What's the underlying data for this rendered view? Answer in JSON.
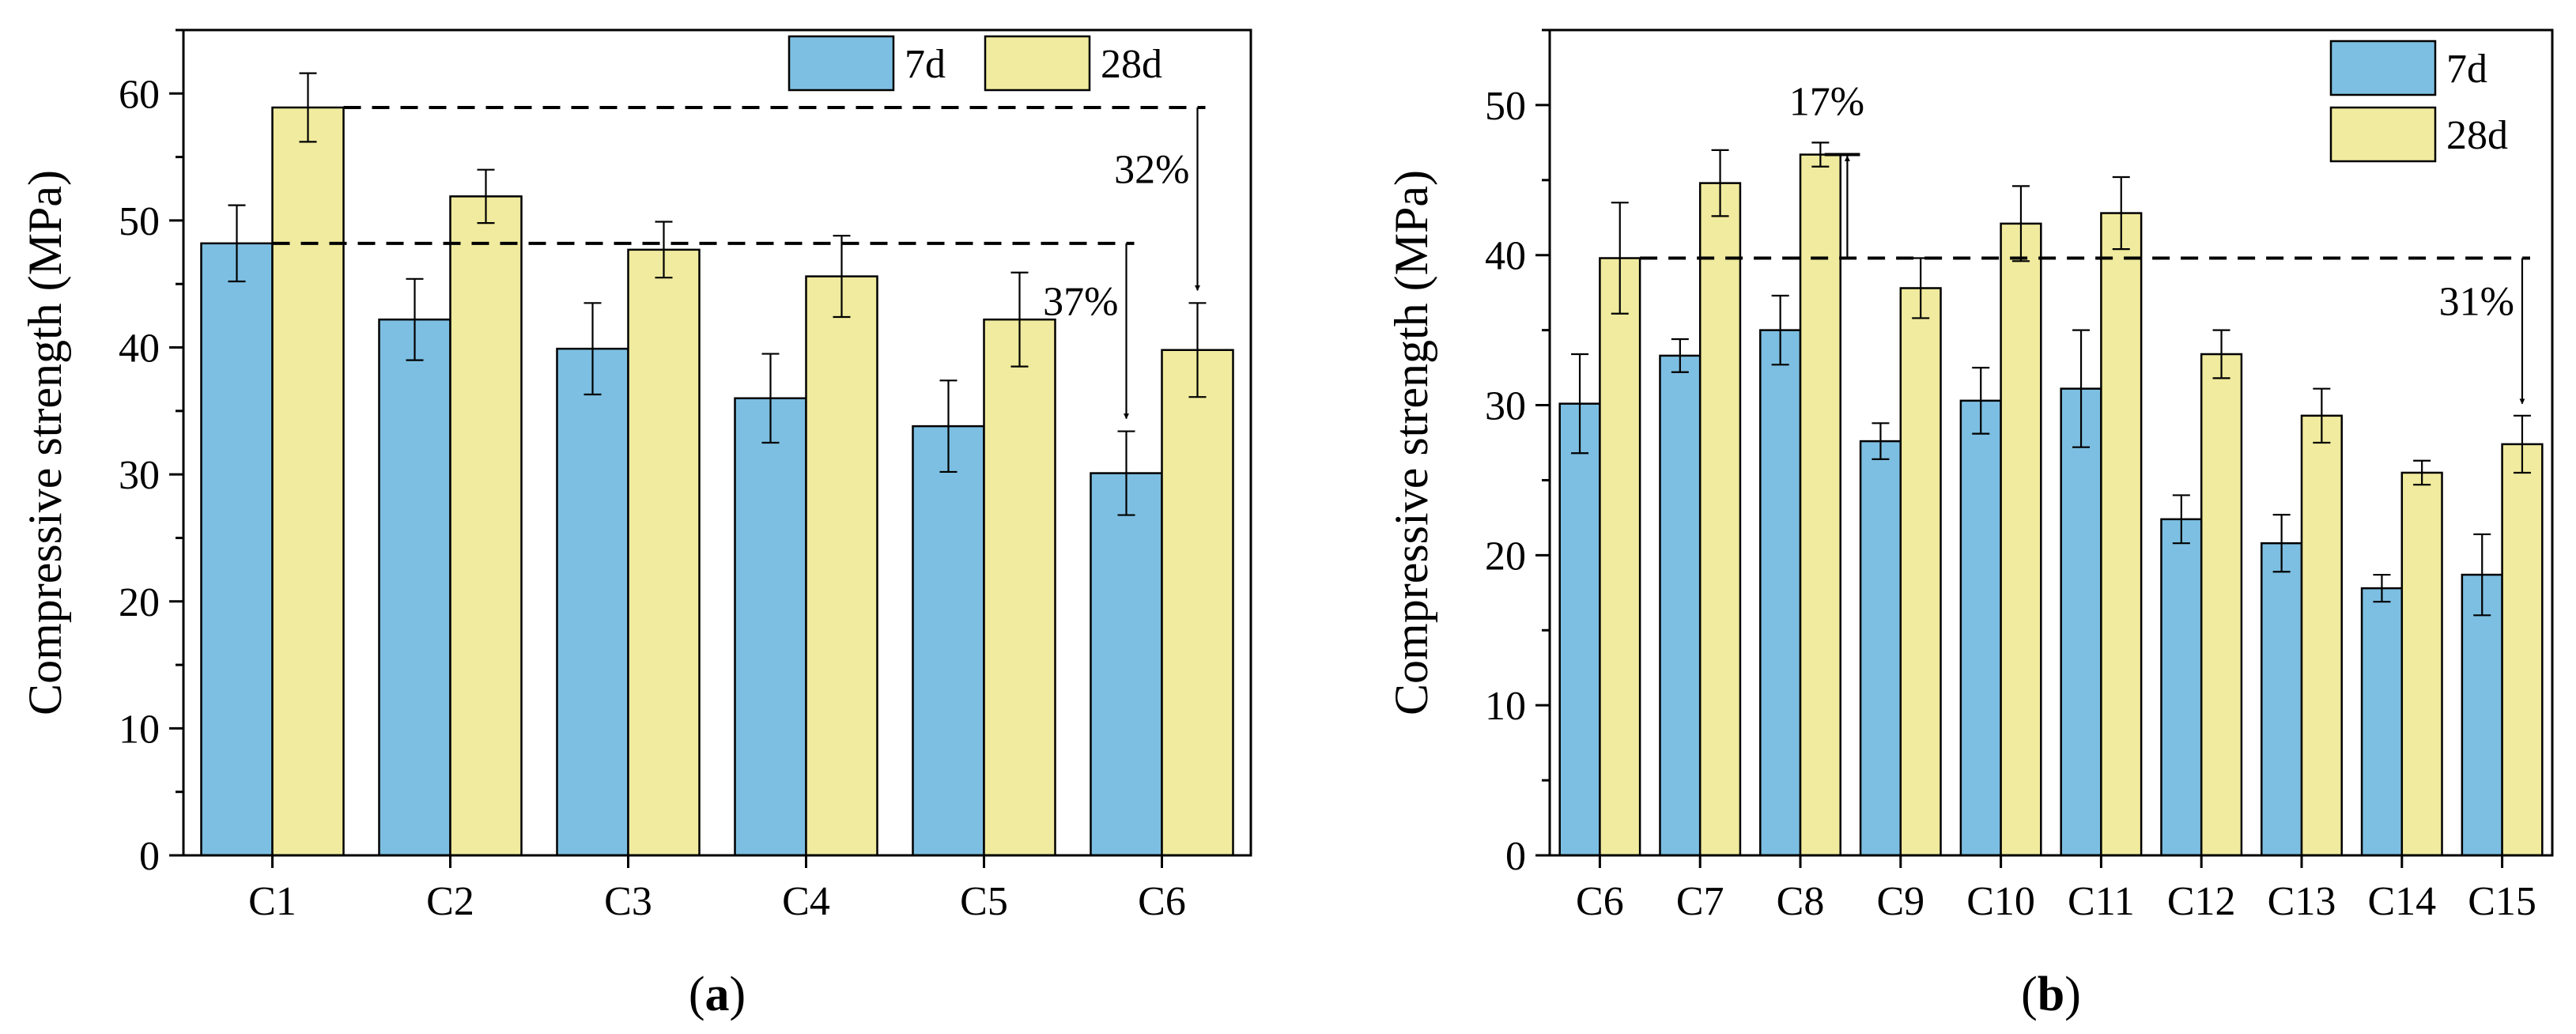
{
  "colors": {
    "bar_7d": "#7dbfe2",
    "bar_28d": "#f0eb9e",
    "stroke": "#000000"
  },
  "chart_data": [
    {
      "id": "a",
      "type": "bar",
      "panel_label": {
        "open": "(",
        "letter": "a",
        "close": ")"
      },
      "categories": [
        "C1",
        "C2",
        "C3",
        "C4",
        "C5",
        "C6"
      ],
      "series": [
        {
          "name": "7d",
          "values": [
            48.2,
            42.2,
            39.9,
            36.0,
            33.8,
            30.1
          ],
          "errors": [
            3.0,
            3.2,
            3.6,
            3.5,
            3.6,
            3.3
          ]
        },
        {
          "name": "28d",
          "values": [
            58.9,
            51.9,
            47.7,
            45.6,
            42.2,
            39.8
          ],
          "errors": [
            2.7,
            2.1,
            2.2,
            3.2,
            3.7,
            3.7
          ]
        }
      ],
      "ylabel": "Compressive strength (MPa)",
      "xlabel": "",
      "ylim": [
        0,
        65
      ],
      "yticks": [
        0,
        10,
        20,
        30,
        40,
        50,
        60
      ],
      "legend_position": "top-right",
      "annotations": [
        {
          "type": "dashed-reference",
          "y": 58.9,
          "from_category": 0,
          "from_series": 1,
          "to_category": 5,
          "to_series": 1,
          "arrow_to_y": 44.5,
          "label": "32%"
        },
        {
          "type": "dashed-reference",
          "y": 48.2,
          "from_category": 0,
          "from_series": 0,
          "to_category": 5,
          "to_series": 0,
          "arrow_to_y": 34.4,
          "label": "37%"
        }
      ]
    },
    {
      "id": "b",
      "type": "bar",
      "panel_label": {
        "open": "(",
        "letter": "b",
        "close": ")"
      },
      "categories": [
        "C6",
        "C7",
        "C8",
        "C9",
        "C10",
        "C11",
        "C12",
        "C13",
        "C14",
        "C15"
      ],
      "series": [
        {
          "name": "7d",
          "values": [
            30.1,
            33.3,
            35.0,
            27.6,
            30.3,
            31.1,
            22.4,
            20.8,
            17.8,
            18.7
          ],
          "errors": [
            3.3,
            1.1,
            2.3,
            1.2,
            2.2,
            3.9,
            1.6,
            1.9,
            0.9,
            2.7
          ]
        },
        {
          "name": "28d",
          "values": [
            39.8,
            44.8,
            46.7,
            37.8,
            42.1,
            42.8,
            33.4,
            29.3,
            25.5,
            27.4
          ],
          "errors": [
            3.7,
            2.2,
            0.8,
            2.0,
            2.5,
            2.4,
            1.6,
            1.8,
            0.8,
            1.9
          ]
        }
      ],
      "ylabel": "Compressive strength (MPa)",
      "xlabel": "",
      "ylim": [
        0,
        55
      ],
      "yticks": [
        0,
        10,
        20,
        30,
        40,
        50
      ],
      "legend_position": "top-right",
      "annotations": [
        {
          "type": "dashed-reference",
          "y": 39.8,
          "from_category": 0,
          "from_series": 1,
          "to_category": 9,
          "to_series": 1,
          "arrow_to_y": 30.1,
          "label": "31%"
        },
        {
          "type": "arrow-up",
          "y": 46.7,
          "from_y": 39.8,
          "category": 3,
          "label": "17%"
        }
      ]
    }
  ]
}
